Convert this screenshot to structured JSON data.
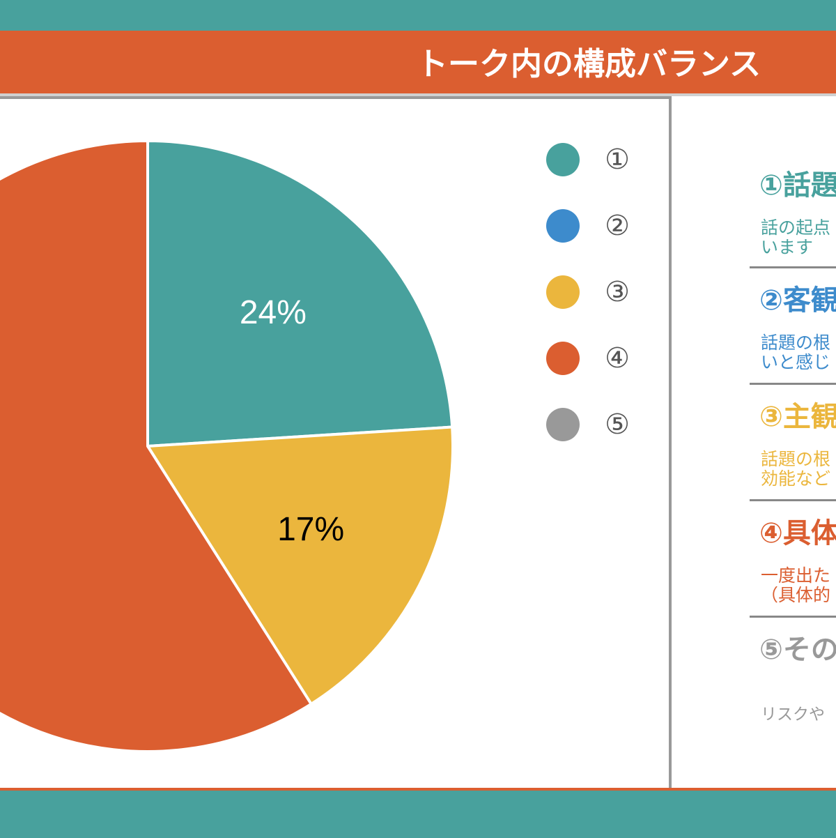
{
  "title": "トーク内の構成バランス",
  "colors": {
    "teal": "#48a19d",
    "blue": "#3d8bcc",
    "yellow": "#ebb63d",
    "orange": "#db5e30",
    "gray": "#999999"
  },
  "chart_data": {
    "type": "pie",
    "categories": [
      "①",
      "②",
      "③",
      "④",
      "⑤"
    ],
    "values": [
      24,
      0,
      17,
      59,
      0
    ],
    "colors": [
      "#48a19d",
      "#3d8bcc",
      "#ebb63d",
      "#db5e30",
      "#999999"
    ],
    "data_labels": [
      "24%",
      "",
      "17%",
      "",
      ""
    ],
    "label_colors": [
      "#ffffff",
      "#ffffff",
      "#000000",
      "#ffffff",
      "#ffffff"
    ],
    "title": "",
    "legend_position": "right"
  },
  "categories": [
    {
      "title": "①話題",
      "desc1": "話の起点",
      "desc2": "います",
      "color": "#48a19d"
    },
    {
      "title": "②客観",
      "desc1": "話題の根",
      "desc2": "いと感じ",
      "color": "#3d8bcc"
    },
    {
      "title": "③主観",
      "desc1": "話題の根",
      "desc2": "効能など",
      "color": "#ebb63d"
    },
    {
      "title": "④具体",
      "desc1": "一度出た",
      "desc2": "（具体的",
      "color": "#db5e30"
    },
    {
      "title": "⑤その",
      "desc1": "",
      "desc2": "リスクや",
      "color": "#999999"
    }
  ]
}
